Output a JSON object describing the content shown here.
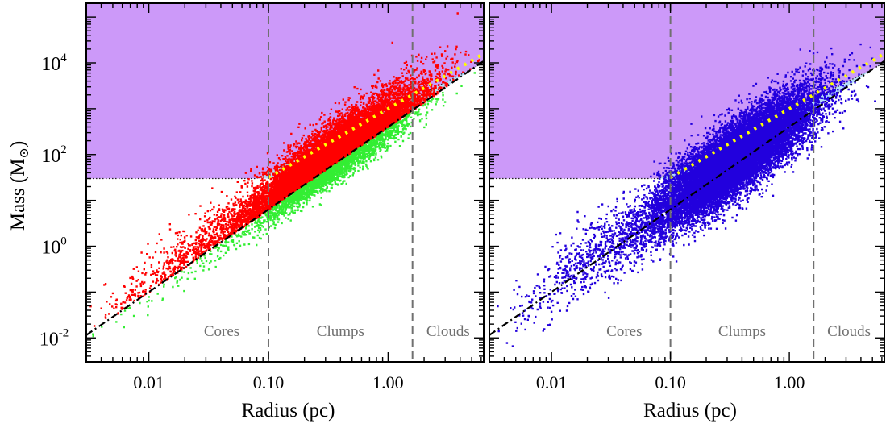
{
  "chart_data": [
    {
      "type": "scatter",
      "xlabel": "Radius (pc)",
      "ylabel_main": "Mass (M",
      "ylabel_sub": "⊙",
      "ylabel_end": ")",
      "x_scale": "log",
      "y_scale": "log",
      "xlim": [
        0.003,
        6.3
      ],
      "ylim": [
        0.003,
        200000
      ],
      "x_ticks": [
        0.01,
        0.1,
        1.0
      ],
      "x_tick_labels": [
        "0.01",
        "0.10",
        "1.00"
      ],
      "y_ticks": [
        0.01,
        1,
        100,
        10000
      ],
      "y_tick_labels": [
        {
          "base": "10",
          "exp": "-2"
        },
        {
          "base": "10",
          "exp": "0"
        },
        {
          "base": "10",
          "exp": "2"
        },
        {
          "base": "10",
          "exp": "4"
        }
      ],
      "regions": [
        {
          "label": "Cores",
          "x_range": [
            0.003,
            0.1
          ]
        },
        {
          "label": "Clumps",
          "x_range": [
            0.1,
            1.6
          ]
        },
        {
          "label": "Clouds",
          "x_range": [
            1.6,
            6.3
          ]
        }
      ],
      "region_boundaries": [
        0.1,
        1.6
      ],
      "mass_threshold": 30,
      "threshold_relation": {
        "slope": 1.8,
        "coefficient": 400
      },
      "high_mass_relation": {
        "slope": 1.33,
        "coefficient": 870
      },
      "mean_relation": {
        "slope": 1.5,
        "coefficient": 1000,
        "x_range": [
          0.1,
          6
        ]
      },
      "colors": {
        "purple_region": "#cc99f9",
        "blue_region": "#b5ddf9",
        "mean_line": "#ffff00",
        "threshold_line": "#000000",
        "boundary_line": "#707070"
      },
      "series": [
        {
          "color": "#ff0000",
          "relation": "above threshold line",
          "approx_points": 15000
        },
        {
          "color": "#33ee33",
          "relation": "below threshold line",
          "approx_points": 2000
        }
      ]
    },
    {
      "type": "scatter",
      "xlabel": "Radius (pc)",
      "x_scale": "log",
      "y_scale": "log",
      "xlim": [
        0.003,
        6.3
      ],
      "ylim": [
        0.003,
        200000
      ],
      "x_ticks": [
        0.01,
        0.1,
        1.0
      ],
      "x_tick_labels": [
        "0.01",
        "0.10",
        "1.00"
      ],
      "regions": [
        {
          "label": "Cores",
          "x_range": [
            0.003,
            0.1
          ]
        },
        {
          "label": "Clumps",
          "x_range": [
            0.1,
            1.6
          ]
        },
        {
          "label": "Clouds",
          "x_range": [
            1.6,
            6.3
          ]
        }
      ],
      "region_boundaries": [
        0.1,
        1.6
      ],
      "mass_threshold": 30,
      "threshold_relation": {
        "slope": 1.8,
        "coefficient": 400
      },
      "high_mass_relation": {
        "slope": 1.33,
        "coefficient": 870
      },
      "mean_relation": {
        "slope": 1.5,
        "coefficient": 1000,
        "x_range": [
          0.1,
          6
        ]
      },
      "colors": {
        "purple_region": "#cc99f9",
        "blue_region": "#b5ddf9",
        "mean_line": "#ffff00",
        "threshold_line": "#000000",
        "boundary_line": "#707070"
      },
      "series": [
        {
          "color": "#2200dd",
          "relation": "all sources",
          "approx_points": 17000
        }
      ]
    }
  ]
}
